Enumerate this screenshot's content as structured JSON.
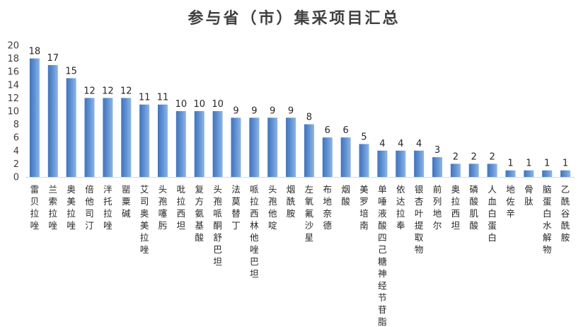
{
  "chart_data": {
    "type": "bar",
    "title": "参与省（市）集采项目汇总",
    "xlabel": "",
    "ylabel": "",
    "ylim": [
      0,
      20
    ],
    "yticks": [
      0,
      2,
      4,
      6,
      8,
      10,
      12,
      14,
      16,
      18,
      20
    ],
    "grid": false,
    "legend": "none",
    "bar_color": "#5b8fd3",
    "categories": [
      "雷贝拉唑",
      "兰索拉唑",
      "奥美拉唑",
      "倍他司汀",
      "泮托拉唑",
      "罂粟碱",
      "艾司奥美拉唑",
      "头孢噻肟",
      "吡拉西坦",
      "复方氨基酸",
      "头孢哌酮舒巴坦",
      "法莫替丁",
      "哌拉西林他唑巴坦",
      "头孢他啶",
      "烟酰胺",
      "左氧氟沙星",
      "布地奈德",
      "烟酸",
      "美罗培南",
      "单唾液酸四己糖神经节苷脂",
      "依达拉奉",
      "银杏叶提取物",
      "前列地尔",
      "奥拉西坦",
      "磷酸肌酸",
      "人血白蛋白",
      "地佐辛",
      "骨肽",
      "脑蛋白水解物",
      "乙酰谷酰胺"
    ],
    "values": [
      18,
      17,
      15,
      12,
      12,
      12,
      11,
      11,
      10,
      10,
      10,
      9,
      9,
      9,
      9,
      8,
      6,
      6,
      5,
      4,
      4,
      4,
      3,
      2,
      2,
      2,
      1,
      1,
      1,
      1
    ]
  }
}
